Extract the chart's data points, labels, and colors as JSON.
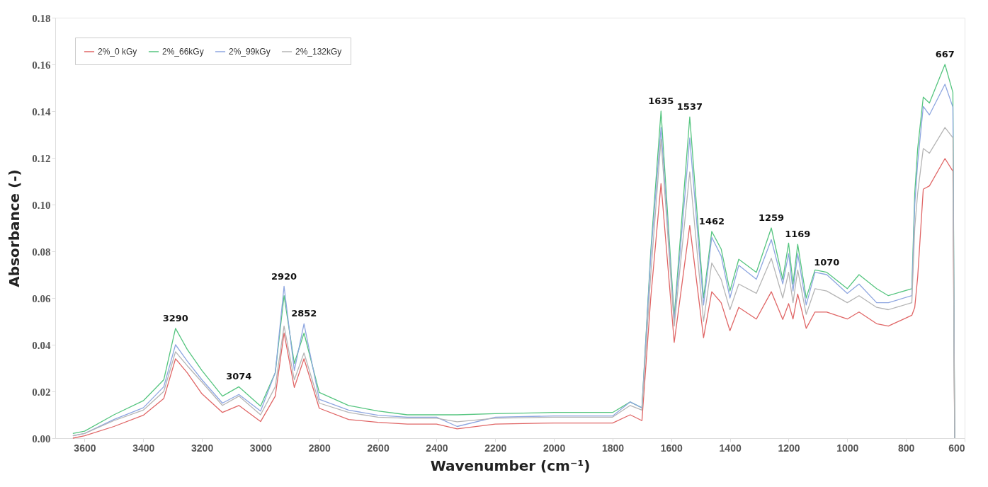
{
  "chart_data": {
    "type": "line",
    "xlabel": "Wavenumber (cm⁻¹)",
    "ylabel": "Absorbance (-)",
    "x": [
      3640,
      3600,
      3500,
      3400,
      3330,
      3290,
      3250,
      3200,
      3130,
      3074,
      3000,
      2950,
      2920,
      2885,
      2852,
      2800,
      2700,
      2600,
      2500,
      2400,
      2330,
      2200,
      2000,
      1800,
      1740,
      1700,
      1670,
      1635,
      1590,
      1537,
      1490,
      1462,
      1430,
      1400,
      1370,
      1310,
      1259,
      1220,
      1200,
      1185,
      1169,
      1140,
      1110,
      1070,
      1000,
      960,
      900,
      860,
      780,
      770,
      760,
      741,
      720,
      667,
      640,
      634
    ],
    "series": [
      {
        "name": "2%_0 kGy",
        "color": "#e06666",
        "values": [
          0.0,
          0.001,
          0.005,
          0.0098,
          0.017,
          0.034,
          0.028,
          0.019,
          0.011,
          0.014,
          0.0071,
          0.018,
          0.045,
          0.0217,
          0.034,
          0.0128,
          0.008,
          0.0068,
          0.006,
          0.006,
          0.004,
          0.006,
          0.0065,
          0.0065,
          0.01,
          0.0075,
          0.06,
          0.109,
          0.041,
          0.091,
          0.043,
          0.0627,
          0.058,
          0.046,
          0.056,
          0.051,
          0.0627,
          0.0508,
          0.0576,
          0.051,
          0.0617,
          0.047,
          0.054,
          0.054,
          0.051,
          0.054,
          0.049,
          0.048,
          0.0526,
          0.056,
          0.069,
          0.1066,
          0.108,
          0.1197,
          0.1143,
          0
        ]
      },
      {
        "name": "2%_66kGy",
        "color": "#55c57f",
        "values": [
          0.002,
          0.003,
          0.01,
          0.016,
          0.025,
          0.047,
          0.038,
          0.029,
          0.018,
          0.022,
          0.0137,
          0.028,
          0.061,
          0.032,
          0.045,
          0.0196,
          0.014,
          0.0116,
          0.01,
          0.01,
          0.01,
          0.0105,
          0.011,
          0.011,
          0.0155,
          0.013,
          0.08,
          0.14,
          0.052,
          0.1375,
          0.06,
          0.0885,
          0.081,
          0.063,
          0.0766,
          0.071,
          0.09,
          0.068,
          0.0835,
          0.066,
          0.083,
          0.06,
          0.072,
          0.071,
          0.064,
          0.07,
          0.064,
          0.061,
          0.064,
          0.105,
          0.124,
          0.146,
          0.1435,
          0.16,
          0.148,
          0
        ]
      },
      {
        "name": "2%_99kGy",
        "color": "#8ea6e0",
        "values": [
          0.001,
          0.002,
          0.008,
          0.013,
          0.022,
          0.04,
          0.033,
          0.025,
          0.015,
          0.0187,
          0.0116,
          0.028,
          0.065,
          0.029,
          0.049,
          0.0166,
          0.012,
          0.0098,
          0.009,
          0.009,
          0.005,
          0.009,
          0.0095,
          0.0095,
          0.0155,
          0.013,
          0.078,
          0.133,
          0.05,
          0.1285,
          0.057,
          0.086,
          0.078,
          0.06,
          0.074,
          0.068,
          0.085,
          0.066,
          0.079,
          0.063,
          0.079,
          0.057,
          0.071,
          0.07,
          0.062,
          0.066,
          0.058,
          0.058,
          0.061,
          0.1,
          0.118,
          0.142,
          0.1384,
          0.1515,
          0.1417,
          0
        ]
      },
      {
        "name": "2%_132kGy",
        "color": "#b5b5b5",
        "values": [
          0.001,
          0.002,
          0.0075,
          0.012,
          0.02,
          0.037,
          0.031,
          0.024,
          0.014,
          0.018,
          0.01,
          0.022,
          0.048,
          0.025,
          0.0365,
          0.015,
          0.011,
          0.009,
          0.0085,
          0.0085,
          0.007,
          0.0085,
          0.009,
          0.009,
          0.014,
          0.012,
          0.07,
          0.128,
          0.048,
          0.114,
          0.05,
          0.075,
          0.068,
          0.055,
          0.066,
          0.062,
          0.077,
          0.06,
          0.071,
          0.058,
          0.072,
          0.053,
          0.064,
          0.063,
          0.058,
          0.061,
          0.056,
          0.055,
          0.058,
          0.09,
          0.105,
          0.124,
          0.122,
          0.133,
          0.1286,
          0
        ]
      }
    ],
    "annotations": [
      {
        "text": "3290",
        "x": 3290,
        "y": 0.047
      },
      {
        "text": "3074",
        "x": 3074,
        "y": 0.022
      },
      {
        "text": "2920",
        "x": 2920,
        "y": 0.065
      },
      {
        "text": "2852",
        "x": 2852,
        "y": 0.049
      },
      {
        "text": "1635",
        "x": 1635,
        "y": 0.14
      },
      {
        "text": "1537",
        "x": 1537,
        "y": 0.1375
      },
      {
        "text": "1462",
        "x": 1462,
        "y": 0.0885
      },
      {
        "text": "1259",
        "x": 1259,
        "y": 0.09
      },
      {
        "text": "1169",
        "x": 1169,
        "y": 0.083
      },
      {
        "text": "1070",
        "x": 1070,
        "y": 0.071
      },
      {
        "text": "667",
        "x": 667,
        "y": 0.16
      }
    ],
    "xlim": [
      3700,
      600
    ],
    "xticks": [
      3600,
      3400,
      3200,
      3000,
      2800,
      2600,
      2400,
      2200,
      2000,
      1800,
      1600,
      1400,
      1200,
      1000,
      800,
      600
    ],
    "ylim": [
      0,
      0.18
    ],
    "yticks": [
      {
        "value": 0,
        "label": "0.00"
      },
      {
        "value": 0.02,
        "label": "0.02"
      },
      {
        "value": 0.04,
        "label": "0.04"
      },
      {
        "value": 0.06,
        "label": "0.06"
      },
      {
        "value": 0.08,
        "label": "0.08"
      },
      {
        "value": 0.1,
        "label": "0.10"
      },
      {
        "value": 0.12,
        "label": "0.12"
      },
      {
        "value": 0.14,
        "label": "0.14"
      },
      {
        "value": 0.16,
        "label": "0.16"
      },
      {
        "value": 0.18,
        "label": "0.18"
      }
    ],
    "legend": "top left",
    "grid": false,
    "marker": "none",
    "line_style": "solid"
  }
}
